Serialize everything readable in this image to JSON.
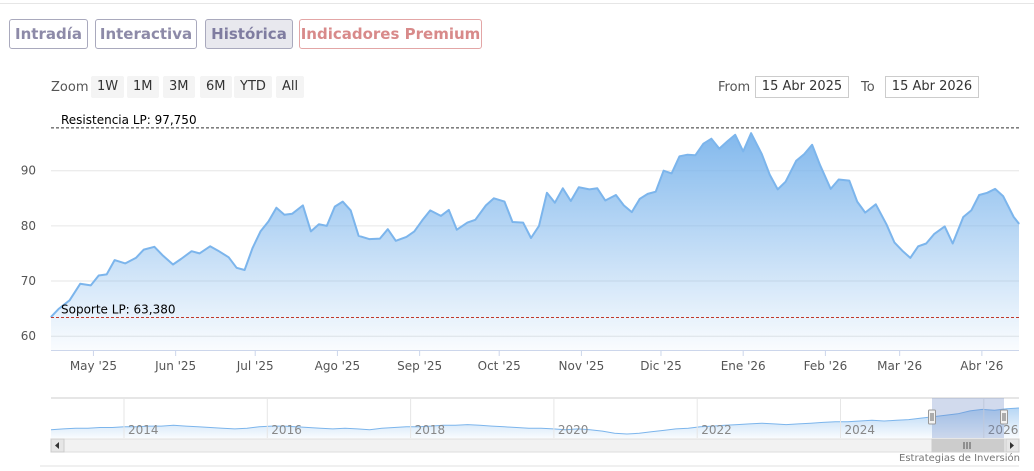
{
  "tabs": [
    {
      "label": "Intradía",
      "active": false
    },
    {
      "label": "Interactiva",
      "active": false
    },
    {
      "label": "Histórica",
      "active": true
    },
    {
      "label": "Indicadores Premium",
      "active": false
    }
  ],
  "range_selector": {
    "zoom_label": "Zoom",
    "buttons": [
      "1W",
      "1M",
      "3M",
      "6M",
      "YTD",
      "All"
    ],
    "from_label": "From",
    "from_value": "15 Abr 2025",
    "to_label": "To",
    "to_value": "15 Abr 2026"
  },
  "colors": {
    "line": "#7cb5ec",
    "resistance": "#333333",
    "support": "#c0392b",
    "tab_border": "#a9a9bd",
    "premium": "#d88a8a"
  },
  "chart_data": {
    "type": "area",
    "x_start": "2025-04-15",
    "x_end": "2026-04-15",
    "ylim": [
      57.5,
      101
    ],
    "yticks": [
      60,
      70,
      80,
      90
    ],
    "xticks": [
      {
        "label": "May '25",
        "date": "2025-05-01"
      },
      {
        "label": "Jun '25",
        "date": "2025-06-01"
      },
      {
        "label": "Jul '25",
        "date": "2025-07-01"
      },
      {
        "label": "Ago '25",
        "date": "2025-08-01"
      },
      {
        "label": "Sep '25",
        "date": "2025-09-01"
      },
      {
        "label": "Oct '25",
        "date": "2025-10-01"
      },
      {
        "label": "Nov '25",
        "date": "2025-11-01"
      },
      {
        "label": "Dic '25",
        "date": "2025-12-01"
      },
      {
        "label": "Ene '26",
        "date": "2026-01-01"
      },
      {
        "label": "Feb '26",
        "date": "2026-02-01"
      },
      {
        "label": "Mar '26",
        "date": "2026-03-01"
      },
      {
        "label": "Abr '26",
        "date": "2026-04-01"
      }
    ],
    "lines": [
      {
        "label": "Resistencia LP: 97,750",
        "value": 97.75,
        "style": "dashed"
      },
      {
        "label": "Soporte LP: 63,380",
        "value": 63.38,
        "style": "dashed"
      }
    ],
    "series": [
      {
        "points": [
          [
            "2025-04-15",
            63.5
          ],
          [
            "2025-04-18",
            65.0
          ],
          [
            "2025-04-22",
            66.5
          ],
          [
            "2025-04-26",
            69.5
          ],
          [
            "2025-04-30",
            69.2
          ],
          [
            "2025-05-03",
            71.0
          ],
          [
            "2025-05-06",
            71.2
          ],
          [
            "2025-05-09",
            73.8
          ],
          [
            "2025-05-13",
            73.2
          ],
          [
            "2025-05-17",
            74.2
          ],
          [
            "2025-05-20",
            75.7
          ],
          [
            "2025-05-24",
            76.2
          ],
          [
            "2025-05-27",
            74.7
          ],
          [
            "2025-05-31",
            73.0
          ],
          [
            "2025-06-03",
            74.0
          ],
          [
            "2025-06-07",
            75.4
          ],
          [
            "2025-06-10",
            75.0
          ],
          [
            "2025-06-14",
            76.3
          ],
          [
            "2025-06-17",
            75.5
          ],
          [
            "2025-06-21",
            74.3
          ],
          [
            "2025-06-24",
            72.4
          ],
          [
            "2025-06-27",
            72.0
          ],
          [
            "2025-06-30",
            76.0
          ],
          [
            "2025-07-03",
            79.0
          ],
          [
            "2025-07-06",
            80.8
          ],
          [
            "2025-07-09",
            83.3
          ],
          [
            "2025-07-12",
            82.0
          ],
          [
            "2025-07-15",
            82.2
          ],
          [
            "2025-07-19",
            83.7
          ],
          [
            "2025-07-22",
            79.0
          ],
          [
            "2025-07-25",
            80.3
          ],
          [
            "2025-07-28",
            80.0
          ],
          [
            "2025-07-31",
            83.5
          ],
          [
            "2025-08-03",
            84.4
          ],
          [
            "2025-08-06",
            82.8
          ],
          [
            "2025-08-09",
            78.2
          ],
          [
            "2025-08-13",
            77.6
          ],
          [
            "2025-08-17",
            77.7
          ],
          [
            "2025-08-20",
            79.4
          ],
          [
            "2025-08-23",
            77.3
          ],
          [
            "2025-08-27",
            78.0
          ],
          [
            "2025-08-30",
            79.0
          ],
          [
            "2025-09-02",
            81.0
          ],
          [
            "2025-09-05",
            82.8
          ],
          [
            "2025-09-09",
            81.8
          ],
          [
            "2025-09-12",
            82.9
          ],
          [
            "2025-09-15",
            79.3
          ],
          [
            "2025-09-19",
            80.6
          ],
          [
            "2025-09-22",
            81.1
          ],
          [
            "2025-09-26",
            83.7
          ],
          [
            "2025-09-29",
            85.0
          ],
          [
            "2025-10-03",
            84.4
          ],
          [
            "2025-10-06",
            80.7
          ],
          [
            "2025-10-10",
            80.6
          ],
          [
            "2025-10-13",
            77.8
          ],
          [
            "2025-10-16",
            80.0
          ],
          [
            "2025-10-19",
            86.0
          ],
          [
            "2025-10-22",
            84.2
          ],
          [
            "2025-10-25",
            86.8
          ],
          [
            "2025-10-28",
            84.5
          ],
          [
            "2025-10-31",
            87.0
          ],
          [
            "2025-11-04",
            86.6
          ],
          [
            "2025-11-07",
            86.8
          ],
          [
            "2025-11-10",
            84.6
          ],
          [
            "2025-11-14",
            85.6
          ],
          [
            "2025-11-17",
            83.7
          ],
          [
            "2025-11-20",
            82.5
          ],
          [
            "2025-11-23",
            84.9
          ],
          [
            "2025-11-26",
            85.8
          ],
          [
            "2025-11-29",
            86.2
          ],
          [
            "2025-12-02",
            90.0
          ],
          [
            "2025-12-05",
            89.5
          ],
          [
            "2025-12-08",
            92.6
          ],
          [
            "2025-12-11",
            92.9
          ],
          [
            "2025-12-14",
            92.8
          ],
          [
            "2025-12-17",
            94.9
          ],
          [
            "2025-12-20",
            95.8
          ],
          [
            "2025-12-23",
            94.0
          ],
          [
            "2025-12-26",
            95.3
          ],
          [
            "2025-12-29",
            96.5
          ],
          [
            "2026-01-01",
            93.5
          ],
          [
            "2026-01-04",
            96.8
          ],
          [
            "2026-01-08",
            93.0
          ],
          [
            "2026-01-11",
            89.3
          ],
          [
            "2026-01-14",
            86.6
          ],
          [
            "2026-01-17",
            88.0
          ],
          [
            "2026-01-21",
            91.8
          ],
          [
            "2026-01-24",
            93.0
          ],
          [
            "2026-01-27",
            94.7
          ],
          [
            "2026-01-30",
            91.0
          ],
          [
            "2026-02-03",
            86.7
          ],
          [
            "2026-02-06",
            88.4
          ],
          [
            "2026-02-10",
            88.2
          ],
          [
            "2026-02-13",
            84.4
          ],
          [
            "2026-02-16",
            82.4
          ],
          [
            "2026-02-20",
            83.9
          ],
          [
            "2026-02-24",
            80.3
          ],
          [
            "2026-02-27",
            77.0
          ],
          [
            "2026-03-02",
            75.5
          ],
          [
            "2026-03-05",
            74.2
          ],
          [
            "2026-03-08",
            76.3
          ],
          [
            "2026-03-11",
            76.8
          ],
          [
            "2026-03-14",
            78.5
          ],
          [
            "2026-03-18",
            79.9
          ],
          [
            "2026-03-21",
            76.8
          ],
          [
            "2026-03-25",
            81.6
          ],
          [
            "2026-03-28",
            82.8
          ],
          [
            "2026-03-31",
            85.6
          ],
          [
            "2026-04-03",
            86.0
          ],
          [
            "2026-04-06",
            86.7
          ],
          [
            "2026-04-09",
            85.4
          ],
          [
            "2026-04-13",
            81.6
          ],
          [
            "2026-04-15",
            80.4
          ]
        ]
      }
    ],
    "navigator": {
      "year_labels": [
        "2014",
        "2016",
        "2018",
        "2020",
        "2022",
        "2024",
        "2026"
      ],
      "values": [
        60,
        61,
        62,
        62,
        63,
        63,
        64,
        64,
        65,
        65,
        66,
        65,
        64,
        63,
        62,
        61,
        62,
        64,
        65,
        65,
        64,
        63,
        62,
        61,
        62,
        61,
        60,
        62,
        63,
        64,
        64,
        65,
        66,
        66,
        67,
        66,
        65,
        64,
        63,
        62,
        62,
        61,
        60,
        61,
        60,
        58,
        55,
        54,
        55,
        57,
        59,
        61,
        62,
        64,
        65,
        66,
        67,
        68,
        69,
        68,
        67,
        68,
        69,
        70,
        71,
        71,
        72,
        73,
        72,
        73,
        74,
        76,
        78,
        80,
        82,
        86,
        88,
        87,
        89,
        90
      ]
    }
  },
  "watermark": "Estrategias de Inversión"
}
